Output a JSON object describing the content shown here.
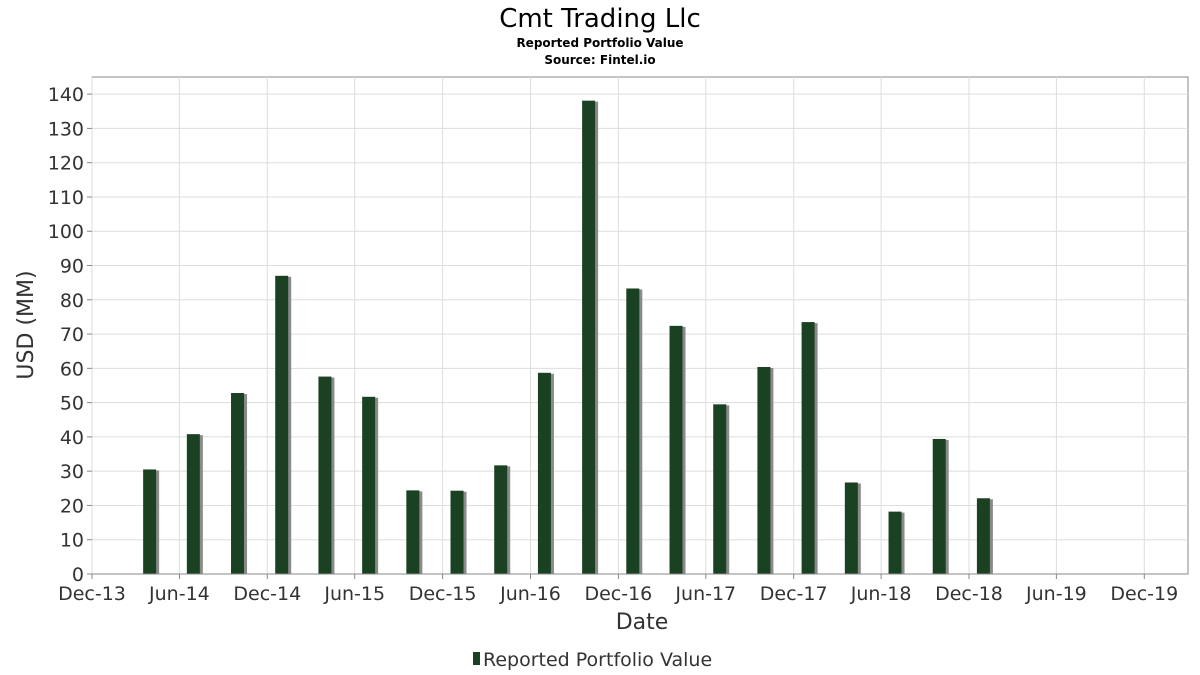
{
  "chart_data": {
    "type": "bar",
    "title": "Cmt Trading Llc",
    "subtitle": "Reported Portfolio Value",
    "source": "Source: Fintel.io",
    "xlabel": "Date",
    "ylabel": "USD (MM)",
    "ylim": [
      0,
      145
    ],
    "yticks": [
      0,
      10,
      20,
      30,
      40,
      50,
      60,
      70,
      80,
      90,
      100,
      110,
      120,
      130,
      140
    ],
    "xlim": [
      "2013-12-01",
      "2020-03-01"
    ],
    "xticks": [
      {
        "date": "2013-12-01",
        "label": "Dec-13"
      },
      {
        "date": "2014-06-01",
        "label": "Jun-14"
      },
      {
        "date": "2014-12-01",
        "label": "Dec-14"
      },
      {
        "date": "2015-06-01",
        "label": "Jun-15"
      },
      {
        "date": "2015-12-01",
        "label": "Dec-15"
      },
      {
        "date": "2016-06-01",
        "label": "Jun-16"
      },
      {
        "date": "2016-12-01",
        "label": "Dec-16"
      },
      {
        "date": "2017-06-01",
        "label": "Jun-17"
      },
      {
        "date": "2017-12-01",
        "label": "Dec-17"
      },
      {
        "date": "2018-06-01",
        "label": "Jun-18"
      },
      {
        "date": "2018-12-01",
        "label": "Dec-18"
      },
      {
        "date": "2019-06-01",
        "label": "Jun-19"
      },
      {
        "date": "2019-12-01",
        "label": "Dec-19"
      }
    ],
    "grid": true,
    "legend_position": "bottom",
    "series": [
      {
        "name": "Reported Portfolio Value",
        "color": "#1a4222",
        "shadow_color": "#8a8a8a",
        "points": [
          {
            "date": "2014-03-31",
            "value": 30.5
          },
          {
            "date": "2014-06-30",
            "value": 40.8
          },
          {
            "date": "2014-09-30",
            "value": 52.8
          },
          {
            "date": "2014-12-31",
            "value": 87.0
          },
          {
            "date": "2015-03-31",
            "value": 57.6
          },
          {
            "date": "2015-06-30",
            "value": 51.7
          },
          {
            "date": "2015-09-30",
            "value": 24.4
          },
          {
            "date": "2015-12-31",
            "value": 24.3
          },
          {
            "date": "2016-03-31",
            "value": 31.7
          },
          {
            "date": "2016-06-30",
            "value": 58.7
          },
          {
            "date": "2016-09-30",
            "value": 138.1
          },
          {
            "date": "2016-12-31",
            "value": 83.3
          },
          {
            "date": "2017-03-31",
            "value": 72.4
          },
          {
            "date": "2017-06-30",
            "value": 49.5
          },
          {
            "date": "2017-09-30",
            "value": 60.4
          },
          {
            "date": "2017-12-31",
            "value": 73.5
          },
          {
            "date": "2018-03-31",
            "value": 26.7
          },
          {
            "date": "2018-06-30",
            "value": 18.2
          },
          {
            "date": "2018-09-30",
            "value": 39.4
          },
          {
            "date": "2018-12-31",
            "value": 22.1
          }
        ]
      }
    ]
  }
}
